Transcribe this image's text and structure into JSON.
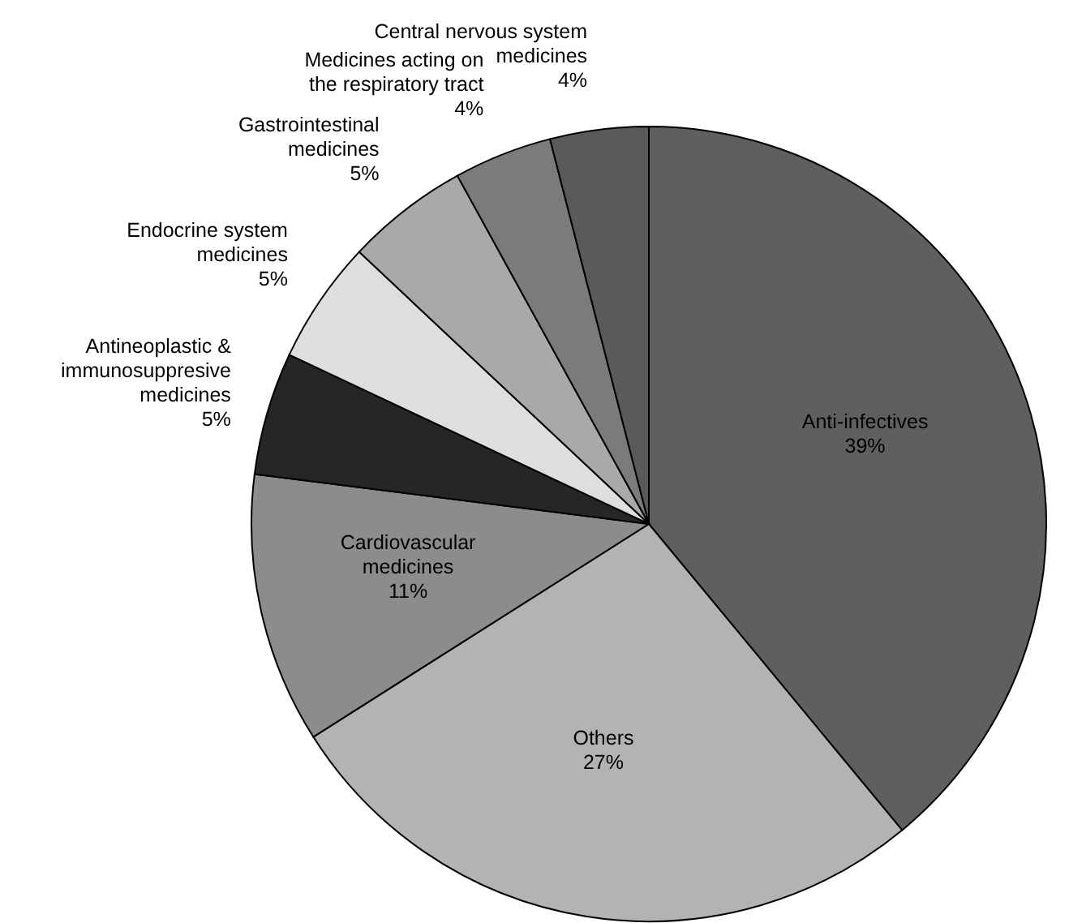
{
  "chart_data": {
    "type": "pie",
    "categories": [
      "Anti-infectives",
      "Others",
      "Cardiovascular medicines",
      "Antineoplastic & immunosuppresive medicines",
      "Endocrine system medicines",
      "Gastrointestinal medicines",
      "Medicines acting on the respiratory tract",
      "Central nervous system medicines"
    ],
    "values": [
      39,
      27,
      11,
      5,
      5,
      5,
      4,
      4
    ],
    "value_labels": [
      "39%",
      "27%",
      "11%",
      "5%",
      "5%",
      "5%",
      "4%",
      "4%"
    ],
    "colors": [
      "#5f5f5f",
      "#b3b3b3",
      "#8c8c8c",
      "#262626",
      "#dedede",
      "#a9a9a9",
      "#7b7b7b",
      "#5a5a5a"
    ],
    "legend": false
  }
}
